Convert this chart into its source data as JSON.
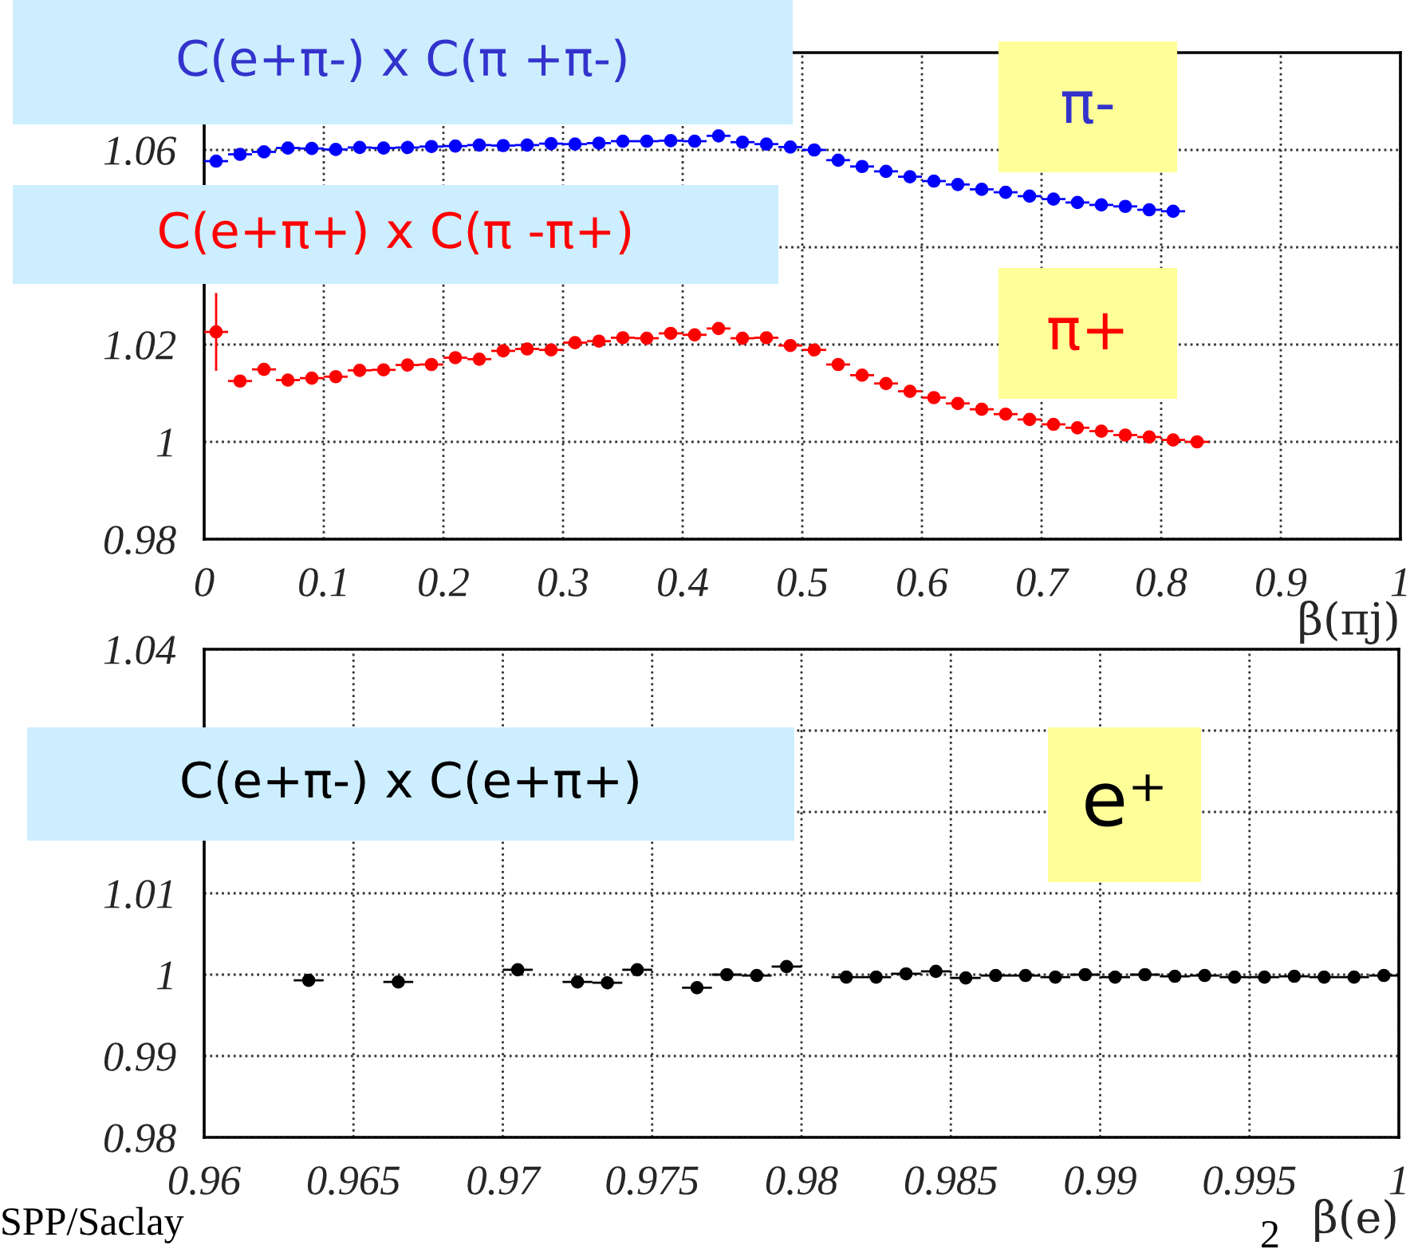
{
  "chart_data": [
    {
      "type": "scatter",
      "xlabel": "β(πj)",
      "xlim": [
        0,
        1
      ],
      "ylim": [
        0.98,
        1.08
      ],
      "xticks": [
        0,
        0.1,
        0.2,
        0.3,
        0.4,
        0.5,
        0.6,
        0.7,
        0.8,
        0.9,
        1
      ],
      "yticks": [
        0.98,
        1,
        1.02,
        {
          "value": 1.04,
          "label": null
        },
        1.06
      ],
      "grid": true,
      "marker": "circle",
      "legend": false,
      "series": [
        {
          "color": "#0000ff",
          "x": [
            0.01,
            0.03,
            0.05,
            0.07,
            0.09,
            0.11,
            0.13,
            0.15,
            0.17,
            0.19,
            0.21,
            0.23,
            0.25,
            0.27,
            0.29,
            0.31,
            0.33,
            0.35,
            0.37,
            0.39,
            0.41,
            0.43,
            0.45,
            0.47,
            0.49,
            0.51,
            0.53,
            0.55,
            0.57,
            0.59,
            0.61,
            0.63,
            0.65,
            0.67,
            0.69,
            0.71,
            0.73,
            0.75,
            0.77,
            0.79,
            0.81
          ],
          "values": [
            1.0577,
            1.0591,
            1.0596,
            1.0604,
            1.0603,
            1.0601,
            1.0605,
            1.0604,
            1.0605,
            1.0607,
            1.0608,
            1.061,
            1.0609,
            1.061,
            1.0613,
            1.0612,
            1.0614,
            1.0618,
            1.0618,
            1.0619,
            1.0618,
            1.0629,
            1.0616,
            1.0612,
            1.0606,
            1.06,
            1.0579,
            1.0566,
            1.0556,
            1.0545,
            1.0536,
            1.0529,
            1.0519,
            1.0513,
            1.0505,
            1.0499,
            1.0492,
            1.0487,
            1.0484,
            1.0477,
            1.0474
          ],
          "xerrors": [
            0.01,
            0.01,
            0.01,
            0.01,
            0.01,
            0.01,
            0.01,
            0.01,
            0.01,
            0.01,
            0.01,
            0.01,
            0.01,
            0.01,
            0.01,
            0.01,
            0.01,
            0.01,
            0.01,
            0.01,
            0.01,
            0.01,
            0.01,
            0.01,
            0.01,
            0.01,
            0.01,
            0.01,
            0.01,
            0.01,
            0.01,
            0.01,
            0.01,
            0.01,
            0.01,
            0.01,
            0.01,
            0.01,
            0.01,
            0.01,
            0.01
          ]
        },
        {
          "color": "#ff0000",
          "x": [
            0.01,
            0.03,
            0.05,
            0.07,
            0.09,
            0.11,
            0.13,
            0.15,
            0.17,
            0.19,
            0.21,
            0.23,
            0.25,
            0.27,
            0.29,
            0.31,
            0.33,
            0.35,
            0.37,
            0.39,
            0.41,
            0.43,
            0.45,
            0.47,
            0.49,
            0.51,
            0.53,
            0.55,
            0.57,
            0.59,
            0.61,
            0.63,
            0.65,
            0.67,
            0.69,
            0.71,
            0.73,
            0.75,
            0.77,
            0.79,
            0.81,
            0.83
          ],
          "values": [
            1.0226,
            1.0125,
            1.0149,
            1.0127,
            1.0131,
            1.0134,
            1.0147,
            1.0148,
            1.0158,
            1.0159,
            1.0173,
            1.017,
            1.0187,
            1.0191,
            1.0189,
            1.0204,
            1.0207,
            1.0214,
            1.0213,
            1.0223,
            1.022,
            1.0233,
            1.0213,
            1.0214,
            1.0198,
            1.0189,
            1.0159,
            1.0137,
            1.012,
            1.0104,
            1.0091,
            1.0079,
            1.0067,
            1.0057,
            1.0046,
            1.0036,
            1.0029,
            1.0022,
            1.0014,
            1.001,
            1.0004,
            1.0
          ],
          "errors": [
            0.008,
            null,
            null,
            null,
            null,
            null,
            null,
            null,
            null,
            null,
            null,
            null,
            null,
            null,
            null,
            null,
            null,
            null,
            null,
            null,
            null,
            null,
            null,
            null,
            null,
            null,
            null,
            null,
            null,
            null,
            null,
            null,
            null,
            null,
            null,
            null,
            null,
            null,
            null,
            null,
            null,
            null
          ],
          "xerrors": [
            0.01,
            0.01,
            0.01,
            0.01,
            0.01,
            0.01,
            0.01,
            0.01,
            0.01,
            0.01,
            0.01,
            0.01,
            0.01,
            0.01,
            0.01,
            0.01,
            0.01,
            0.01,
            0.01,
            0.01,
            0.01,
            0.01,
            0.01,
            0.01,
            0.01,
            0.01,
            0.01,
            0.01,
            0.01,
            0.01,
            0.01,
            0.01,
            0.01,
            0.01,
            0.01,
            0.01,
            0.01,
            0.01,
            0.01,
            0.01,
            0.01,
            0.01
          ]
        }
      ],
      "annotations": [
        "C(e+π-) x C(π +π-)",
        "C(e+π+) x C(π -π+)",
        "π-",
        "π+"
      ]
    },
    {
      "type": "scatter",
      "xlabel": "β(e)",
      "xlim": [
        0.96,
        1
      ],
      "ylim": [
        0.98,
        1.04
      ],
      "xticks": [
        0.96,
        0.965,
        0.97,
        0.975,
        0.98,
        0.985,
        0.99,
        0.995,
        1
      ],
      "yticks": [
        0.98,
        0.99,
        1,
        1.01,
        {
          "value": 1.02,
          "label": null
        },
        {
          "value": 1.03,
          "label": null
        },
        1.04
      ],
      "grid": true,
      "marker": "circle",
      "legend": false,
      "series": [
        {
          "color": "#000000",
          "x": [
            0.9635,
            0.9665,
            0.9705,
            0.9725,
            0.9735,
            0.9745,
            0.9765,
            0.9775,
            0.9785,
            0.9795,
            0.9815,
            0.9825,
            0.9835,
            0.9845,
            0.9855,
            0.9865,
            0.9875,
            0.9885,
            0.9895,
            0.9905,
            0.9915,
            0.9925,
            0.9935,
            0.9945,
            0.9955,
            0.9965,
            0.9975,
            0.9985,
            0.9995
          ],
          "values": [
            0.9993,
            0.9991,
            1.0006,
            0.9991,
            0.999,
            1.0006,
            0.9984,
            1.0,
            0.9999,
            1.001,
            0.9997,
            0.9997,
            1.0001,
            1.0004,
            0.9996,
            0.9999,
            0.9999,
            0.9997,
            1.0,
            0.9997,
            1.0,
            0.9998,
            0.9999,
            0.9997,
            0.9997,
            0.9998,
            0.9997,
            0.9997,
            0.9999
          ],
          "xerrors": [
            0.0005,
            0.0005,
            0.0005,
            0.0005,
            0.0005,
            0.0005,
            0.0005,
            0.0005,
            0.0005,
            0.0005,
            0.0005,
            0.0005,
            0.0005,
            0.0005,
            0.0005,
            0.0005,
            0.0005,
            0.0005,
            0.0005,
            0.0005,
            0.0005,
            0.0005,
            0.0005,
            0.0005,
            0.0005,
            0.0005,
            0.0005,
            0.0005,
            0.0005
          ]
        }
      ],
      "annotations": [
        "C(e+π-) x C(e+π+)",
        "e⁺",
        "SPP/Saclay",
        "2"
      ]
    }
  ]
}
